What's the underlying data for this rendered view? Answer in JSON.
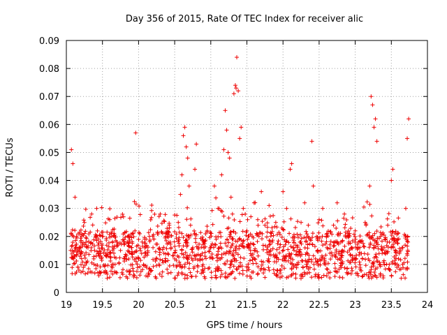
{
  "chart_data": {
    "type": "scatter",
    "title": "Day 356 of 2015, Rate Of TEC Index for receiver alic",
    "xlabel": "GPS time / hours",
    "ylabel": "ROTI / TECUs",
    "xlim": [
      19,
      24
    ],
    "ylim": [
      0,
      0.09
    ],
    "xticks": [
      "19",
      "19.5",
      "20",
      "20.5",
      "21",
      "21.5",
      "22",
      "22.5",
      "23",
      "23.5",
      "24"
    ],
    "yticks": [
      "0",
      "0.01",
      "0.02",
      "0.03",
      "0.04",
      "0.05",
      "0.06",
      "0.07",
      "0.08",
      "0.09"
    ],
    "grid": true,
    "marker": "plus",
    "color": "#ee0000",
    "series": [
      {
        "name": "ROTI",
        "x": [
          19.06,
          19.07,
          19.09,
          19.1,
          19.12,
          19.14,
          19.16,
          19.2,
          19.25,
          19.3,
          19.35,
          19.38,
          19.42,
          19.45,
          19.5,
          19.55,
          19.6,
          19.65,
          19.7,
          19.75,
          19.8,
          19.85,
          19.9,
          19.95,
          19.96,
          20.0,
          20.05,
          20.1,
          20.15,
          20.2,
          20.25,
          20.3,
          20.35,
          20.4,
          20.45,
          20.5,
          20.55,
          20.58,
          20.6,
          20.62,
          20.64,
          20.66,
          20.68,
          20.7,
          20.72,
          20.75,
          20.78,
          20.8,
          20.85,
          20.9,
          20.95,
          21.0,
          21.05,
          21.1,
          21.15,
          21.18,
          21.2,
          21.22,
          21.24,
          21.26,
          21.28,
          21.3,
          21.32,
          21.34,
          21.35,
          21.36,
          21.38,
          21.4,
          21.42,
          21.45,
          21.5,
          21.55,
          21.6,
          21.65,
          21.7,
          21.75,
          21.8,
          21.85,
          21.9,
          21.95,
          22.0,
          22.05,
          22.1,
          22.12,
          22.15,
          22.2,
          22.25,
          22.3,
          22.35,
          22.4,
          22.42,
          22.45,
          22.5,
          22.55,
          22.6,
          22.65,
          22.7,
          22.75,
          22.8,
          22.85,
          22.9,
          22.95,
          23.0,
          23.05,
          23.1,
          23.15,
          23.2,
          23.22,
          23.24,
          23.26,
          23.28,
          23.3,
          23.35,
          23.4,
          23.45,
          23.5,
          23.52,
          23.55,
          23.6,
          23.65,
          23.7,
          23.72,
          23.74
        ],
        "y": [
          0.015,
          0.051,
          0.046,
          0.012,
          0.034,
          0.02,
          0.009,
          0.018,
          0.025,
          0.016,
          0.028,
          0.012,
          0.03,
          0.006,
          0.02,
          0.014,
          0.026,
          0.01,
          0.018,
          0.015,
          0.012,
          0.02,
          0.016,
          0.022,
          0.057,
          0.012,
          0.018,
          0.014,
          0.02,
          0.016,
          0.012,
          0.028,
          0.014,
          0.02,
          0.016,
          0.012,
          0.025,
          0.035,
          0.042,
          0.056,
          0.059,
          0.052,
          0.048,
          0.038,
          0.024,
          0.016,
          0.044,
          0.053,
          0.012,
          0.018,
          0.022,
          0.016,
          0.038,
          0.03,
          0.042,
          0.051,
          0.065,
          0.058,
          0.05,
          0.048,
          0.034,
          0.028,
          0.071,
          0.074,
          0.073,
          0.084,
          0.072,
          0.055,
          0.059,
          0.03,
          0.022,
          0.015,
          0.032,
          0.026,
          0.036,
          0.024,
          0.012,
          0.018,
          0.025,
          0.016,
          0.036,
          0.03,
          0.044,
          0.046,
          0.02,
          0.016,
          0.025,
          0.032,
          0.024,
          0.054,
          0.038,
          0.012,
          0.026,
          0.03,
          0.02,
          0.014,
          0.024,
          0.032,
          0.018,
          0.028,
          0.02,
          0.016,
          0.022,
          0.018,
          0.012,
          0.024,
          0.038,
          0.07,
          0.067,
          0.059,
          0.062,
          0.054,
          0.02,
          0.016,
          0.024,
          0.04,
          0.044,
          0.018,
          0.012,
          0.016,
          0.03,
          0.055,
          0.062
        ]
      }
    ]
  }
}
